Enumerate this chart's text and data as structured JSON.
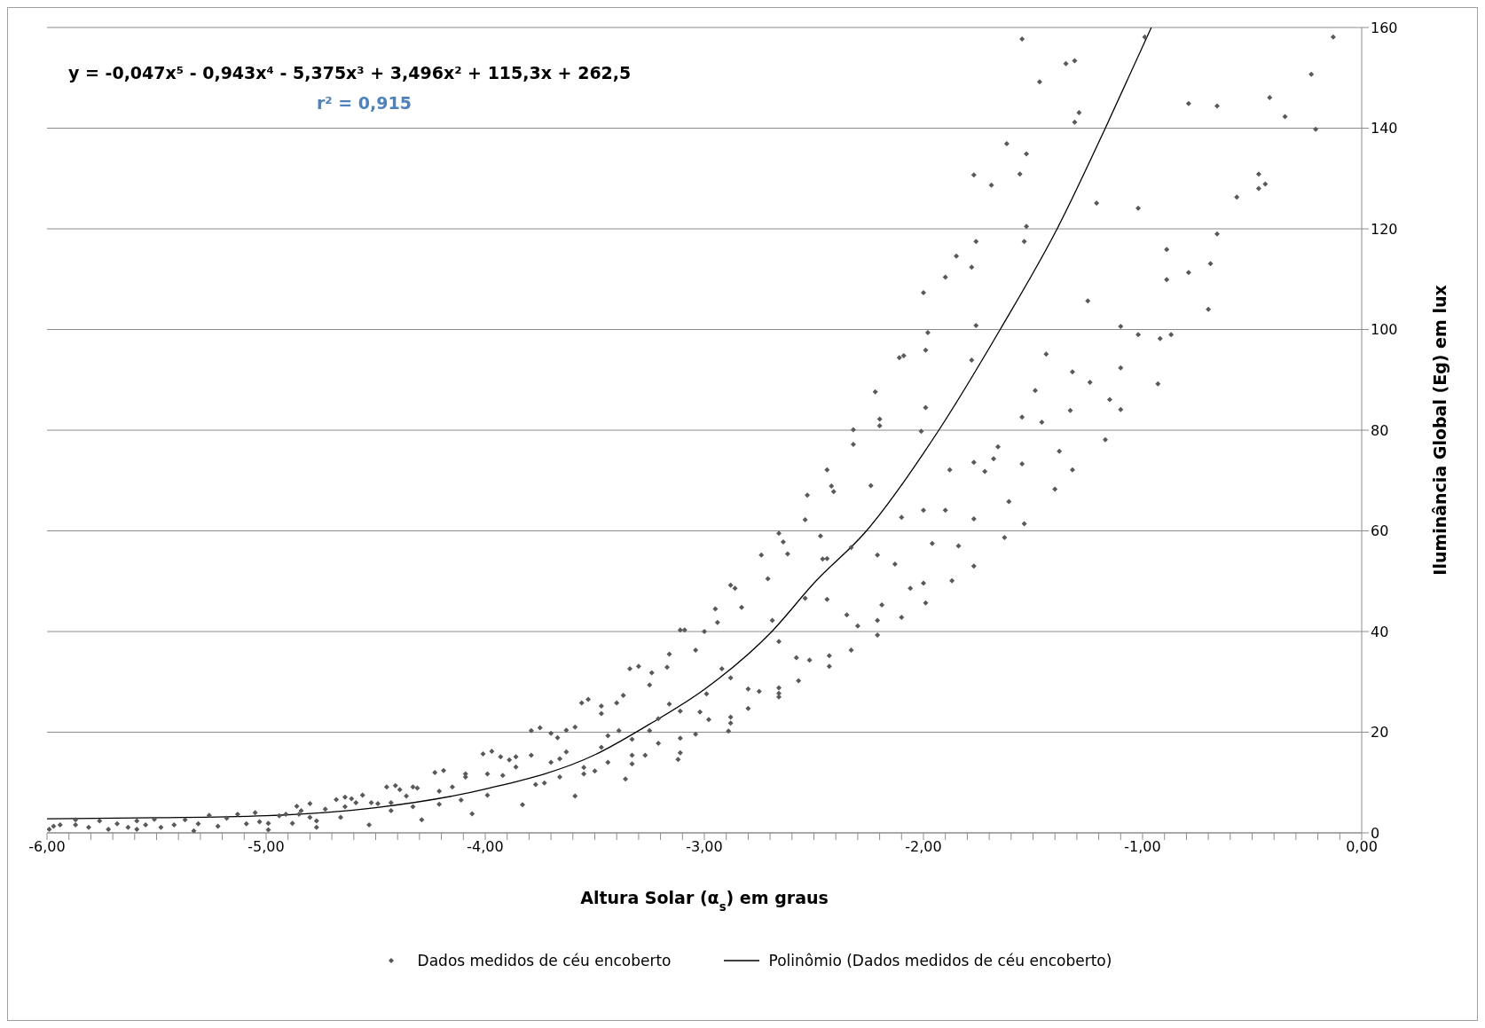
{
  "chart_data": {
    "type": "scatter",
    "xlabel": "Altura Solar (α$_{s}$) em graus",
    "ylabel": "Iluminância Global (Eg) em lux",
    "annotations": [
      "y = -0,047x⁵ - 0,943x⁴ - 5,375x³ + 3,496x² + 115,3x + 262,5",
      "r² = 0,915"
    ],
    "xlim": [
      -6,
      0
    ],
    "ylim": [
      0,
      160
    ],
    "xticks": [
      {
        "value": -6,
        "label": "-6,00"
      },
      {
        "value": -5.9,
        "label": null
      },
      {
        "value": -5.8,
        "label": null
      },
      {
        "value": -5.7,
        "label": null
      },
      {
        "value": -5.6,
        "label": null
      },
      {
        "value": -5.5,
        "label": null
      },
      {
        "value": -5.4,
        "label": null
      },
      {
        "value": -5.3,
        "label": null
      },
      {
        "value": -5.2,
        "label": null
      },
      {
        "value": -5.1,
        "label": null
      },
      {
        "value": -5,
        "label": "-5,00"
      },
      {
        "value": -4.9,
        "label": null
      },
      {
        "value": -4.8,
        "label": null
      },
      {
        "value": -4.7,
        "label": null
      },
      {
        "value": -4.6,
        "label": null
      },
      {
        "value": -4.5,
        "label": null
      },
      {
        "value": -4.4,
        "label": null
      },
      {
        "value": -4.3,
        "label": null
      },
      {
        "value": -4.2,
        "label": null
      },
      {
        "value": -4.1,
        "label": null
      },
      {
        "value": -4,
        "label": "-4,00"
      },
      {
        "value": -3.9,
        "label": null
      },
      {
        "value": -3.8,
        "label": null
      },
      {
        "value": -3.7,
        "label": null
      },
      {
        "value": -3.6,
        "label": null
      },
      {
        "value": -3.5,
        "label": null
      },
      {
        "value": -3.4,
        "label": null
      },
      {
        "value": -3.3,
        "label": null
      },
      {
        "value": -3.2,
        "label": null
      },
      {
        "value": -3.1,
        "label": null
      },
      {
        "value": -3,
        "label": "-3,00"
      },
      {
        "value": -2.9,
        "label": null
      },
      {
        "value": -2.8,
        "label": null
      },
      {
        "value": -2.7,
        "label": null
      },
      {
        "value": -2.6,
        "label": null
      },
      {
        "value": -2.5,
        "label": null
      },
      {
        "value": -2.4,
        "label": null
      },
      {
        "value": -2.3,
        "label": null
      },
      {
        "value": -2.2,
        "label": null
      },
      {
        "value": -2.1,
        "label": null
      },
      {
        "value": -2,
        "label": "-2,00"
      },
      {
        "value": -1.9,
        "label": null
      },
      {
        "value": -1.8,
        "label": null
      },
      {
        "value": -1.7,
        "label": null
      },
      {
        "value": -1.6,
        "label": null
      },
      {
        "value": -1.5,
        "label": null
      },
      {
        "value": -1.4,
        "label": null
      },
      {
        "value": -1.3,
        "label": null
      },
      {
        "value": -1.2,
        "label": null
      },
      {
        "value": -1.1,
        "label": null
      },
      {
        "value": -1,
        "label": "-1,00"
      },
      {
        "value": -0.9,
        "label": null
      },
      {
        "value": -0.8,
        "label": null
      },
      {
        "value": -0.7,
        "label": null
      },
      {
        "value": -0.6,
        "label": null
      },
      {
        "value": -0.5,
        "label": null
      },
      {
        "value": -0.4,
        "label": null
      },
      {
        "value": -0.3,
        "label": null
      },
      {
        "value": -0.2,
        "label": null
      },
      {
        "value": -0.1,
        "label": null
      },
      {
        "value": 0,
        "label": "0,00"
      }
    ],
    "yticks": [
      0,
      20,
      40,
      60,
      80,
      100,
      120,
      140,
      160
    ],
    "grid": "y",
    "legend": "bottom",
    "marker": "diamond",
    "series": [
      {
        "name": "Dados medidos de céu encoberto",
        "color": "#595959",
        "x": [
          -5.99,
          -5.97,
          -5.94,
          -5.87,
          -5.87,
          -5.81,
          -5.76,
          -5.72,
          -5.68,
          -5.63,
          -5.59,
          -5.59,
          -5.55,
          -5.51,
          -5.48,
          -5.42,
          -5.37,
          -5.33,
          -5.31,
          -5.26,
          -5.22,
          -5.18,
          -5.13,
          -5.09,
          -5.05,
          -5.03,
          -4.99,
          -4.99,
          -4.94,
          -4.91,
          -4.88,
          -4.86,
          -4.85,
          -4.84,
          -4.8,
          -4.8,
          -4.77,
          -4.77,
          -4.73,
          -4.68,
          -4.66,
          -4.64,
          -4.64,
          -4.61,
          -4.59,
          -4.56,
          -4.53,
          -4.52,
          -4.49,
          -4.45,
          -4.43,
          -4.43,
          -4.41,
          -4.39,
          -4.36,
          -4.33,
          -4.33,
          -4.31,
          -4.29,
          -4.23,
          -4.21,
          -4.21,
          -4.19,
          -4.15,
          -4.11,
          -4.09,
          -4.09,
          -4.06,
          -3.99,
          -3.99,
          -4.01,
          -3.97,
          -3.92,
          -3.93,
          -3.89,
          -3.86,
          -3.86,
          -3.83,
          -3.79,
          -3.77,
          -3.73,
          -3.79,
          -3.75,
          -3.7,
          -3.7,
          -3.66,
          -3.67,
          -3.66,
          -3.63,
          -3.63,
          -3.59,
          -3.59,
          -3.55,
          -3.55,
          -3.56,
          -3.53,
          -3.5,
          -3.47,
          -3.47,
          -3.47,
          -3.44,
          -3.44,
          -3.39,
          -3.37,
          -3.4,
          -3.36,
          -3.33,
          -3.33,
          -3.33,
          -3.34,
          -3.27,
          -3.3,
          -3.25,
          -3.25,
          -3.24,
          -3.21,
          -3.21,
          -3.12,
          -3.11,
          -3.11,
          -3.04,
          -3.11,
          -3.11,
          -3.16,
          -3.17,
          -3.16,
          -3.09,
          -3.04,
          -3.02,
          -3.0,
          -2.98,
          -2.99,
          -2.94,
          -2.95,
          -2.92,
          -2.88,
          -2.88,
          -2.88,
          -2.89,
          -2.88,
          -2.86,
          -2.83,
          -2.8,
          -2.8,
          -2.74,
          -2.75,
          -2.71,
          -2.69,
          -2.66,
          -2.66,
          -2.66,
          -2.66,
          -2.66,
          -2.64,
          -2.62,
          -2.57,
          -2.58,
          -2.54,
          -2.54,
          -2.52,
          -2.47,
          -2.46,
          -2.44,
          -2.44,
          -2.43,
          -2.43,
          -2.35,
          -2.3,
          -2.33,
          -2.33,
          -2.21,
          -2.21,
          -2.21,
          -2.19,
          -2.13,
          -2.1,
          -2.1,
          -2.06,
          -2.0,
          -1.99,
          -2.0,
          -1.9,
          -1.96,
          -1.87,
          -1.84,
          -1.77,
          -1.77,
          -1.63,
          -1.54,
          -1.61,
          -1.55,
          -0.99,
          -0.13,
          -1.35,
          -1.31,
          -1.47,
          -0.23,
          -0.79,
          -0.66,
          -0.42,
          -0.35,
          -0.21,
          -1.29,
          -1.31,
          -1.62,
          -1.53,
          -1.77,
          -1.56,
          -1.69,
          -0.47,
          -0.44,
          -0.47,
          -0.57,
          -1.21,
          -1.02,
          -1.53,
          -1.54,
          -1.76,
          -0.66,
          -1.85,
          -1.78,
          -0.89,
          -0.79,
          -0.69,
          -1.9,
          -0.89,
          -2.0,
          -1.25,
          -0.7,
          -1.76,
          -1.98,
          -1.1,
          -1.02,
          -0.92,
          -0.87,
          -1.99,
          -2.09,
          -2.11,
          -1.44,
          -1.78,
          -1.1,
          -1.32,
          -1.24,
          -0.93,
          -2.22,
          -1.49,
          -1.15,
          -1.99,
          -1.1,
          -1.33,
          -1.55,
          -1.46,
          -2.2,
          -2.2,
          -2.32,
          -2.01,
          -1.17,
          -2.32,
          -1.66,
          -1.38,
          -1.68,
          -1.77,
          -1.55,
          -2.44,
          -1.88,
          -1.72,
          -1.32,
          -2.42,
          -2.41,
          -2.24,
          -1.4,
          -2.53
        ],
        "values": [
          0.7,
          1.3,
          1.6,
          1.6,
          2.6,
          1.1,
          2.4,
          0.7,
          1.8,
          1.1,
          2.4,
          0.7,
          1.6,
          2.7,
          1.1,
          1.6,
          2.6,
          0.4,
          1.8,
          3.5,
          1.3,
          2.9,
          3.7,
          1.8,
          4.0,
          2.2,
          1.9,
          0.6,
          3.4,
          3.7,
          1.9,
          5.3,
          3.7,
          4.4,
          3.1,
          5.8,
          2.4,
          1.1,
          4.7,
          6.6,
          3.1,
          5.2,
          7.1,
          6.8,
          6.0,
          7.5,
          1.6,
          6.0,
          5.8,
          9.1,
          6.0,
          4.4,
          9.4,
          8.6,
          7.3,
          5.2,
          9.1,
          8.9,
          2.6,
          12.0,
          8.3,
          5.7,
          12.4,
          9.1,
          6.5,
          11.1,
          11.7,
          3.8,
          7.5,
          11.7,
          15.7,
          16.2,
          11.4,
          15.1,
          14.5,
          13.1,
          15.1,
          5.6,
          15.4,
          9.6,
          9.9,
          20.3,
          20.9,
          14.0,
          19.8,
          11.1,
          18.9,
          14.7,
          16.1,
          20.4,
          7.3,
          21.0,
          13.0,
          11.7,
          25.8,
          26.5,
          12.3,
          17.0,
          23.7,
          25.2,
          14.0,
          19.3,
          20.3,
          27.3,
          25.8,
          10.7,
          13.7,
          15.4,
          18.6,
          32.6,
          15.4,
          33.1,
          20.3,
          29.4,
          31.8,
          22.7,
          17.8,
          14.6,
          15.9,
          18.8,
          19.6,
          24.2,
          40.3,
          35.5,
          32.9,
          25.6,
          40.3,
          36.3,
          24.0,
          40.0,
          22.5,
          27.6,
          41.8,
          44.5,
          32.6,
          30.8,
          23.0,
          21.8,
          20.2,
          49.2,
          48.6,
          44.8,
          24.7,
          28.6,
          55.2,
          28.1,
          50.5,
          42.2,
          38.0,
          27.0,
          27.7,
          28.8,
          59.5,
          57.8,
          55.4,
          30.2,
          34.8,
          62.2,
          46.6,
          34.3,
          59.0,
          54.4,
          46.4,
          54.5,
          35.2,
          33.1,
          43.3,
          41.1,
          36.3,
          56.7,
          55.2,
          42.2,
          39.3,
          45.3,
          53.4,
          42.8,
          62.7,
          48.6,
          64.1,
          45.7,
          49.6,
          64.1,
          57.5,
          50.1,
          57.0,
          62.4,
          53.0,
          58.7,
          61.4,
          65.8,
          157.7,
          158.1,
          158.1,
          152.8,
          153.4,
          149.2,
          150.7,
          144.9,
          144.4,
          146.1,
          142.3,
          139.8,
          143.1,
          141.2,
          136.9,
          134.9,
          130.7,
          130.9,
          128.7,
          130.9,
          128.9,
          128.0,
          126.3,
          125.1,
          124.1,
          120.5,
          117.5,
          117.5,
          119.0,
          114.6,
          112.4,
          115.9,
          111.3,
          113.1,
          110.4,
          109.9,
          107.3,
          105.7,
          104.0,
          100.8,
          99.4,
          100.6,
          99.0,
          98.2,
          99.0,
          95.9,
          94.8,
          94.4,
          95.1,
          93.9,
          92.4,
          91.6,
          89.5,
          89.2,
          87.6,
          87.9,
          86.1,
          84.5,
          84.1,
          83.9,
          82.6,
          81.6,
          82.2,
          80.9,
          80.1,
          79.8,
          78.1,
          77.2,
          76.7,
          75.8,
          74.3,
          73.6,
          73.3,
          72.1,
          72.1,
          71.8,
          72.1,
          68.9,
          67.8,
          69.0,
          68.3,
          67.1
        ]
      },
      {
        "name": "Polinômio (Dados medidos de céu encoberto)",
        "type": "line",
        "color": "#000000",
        "marker": "none",
        "line_style": "solid",
        "x": [
          -6,
          -5.5,
          -5,
          -4.5,
          -4,
          -3.5,
          -3.25,
          -3,
          -2.69,
          -2.5,
          -2.26,
          -1.93,
          -1.65,
          -1.39,
          -1.17,
          -0.96
        ],
        "values": [
          2.8,
          3.0,
          3.4,
          5.0,
          8.7,
          15.5,
          21.6,
          28.5,
          40.1,
          49.6,
          60,
          80,
          100,
          120,
          140,
          160
        ]
      }
    ]
  }
}
